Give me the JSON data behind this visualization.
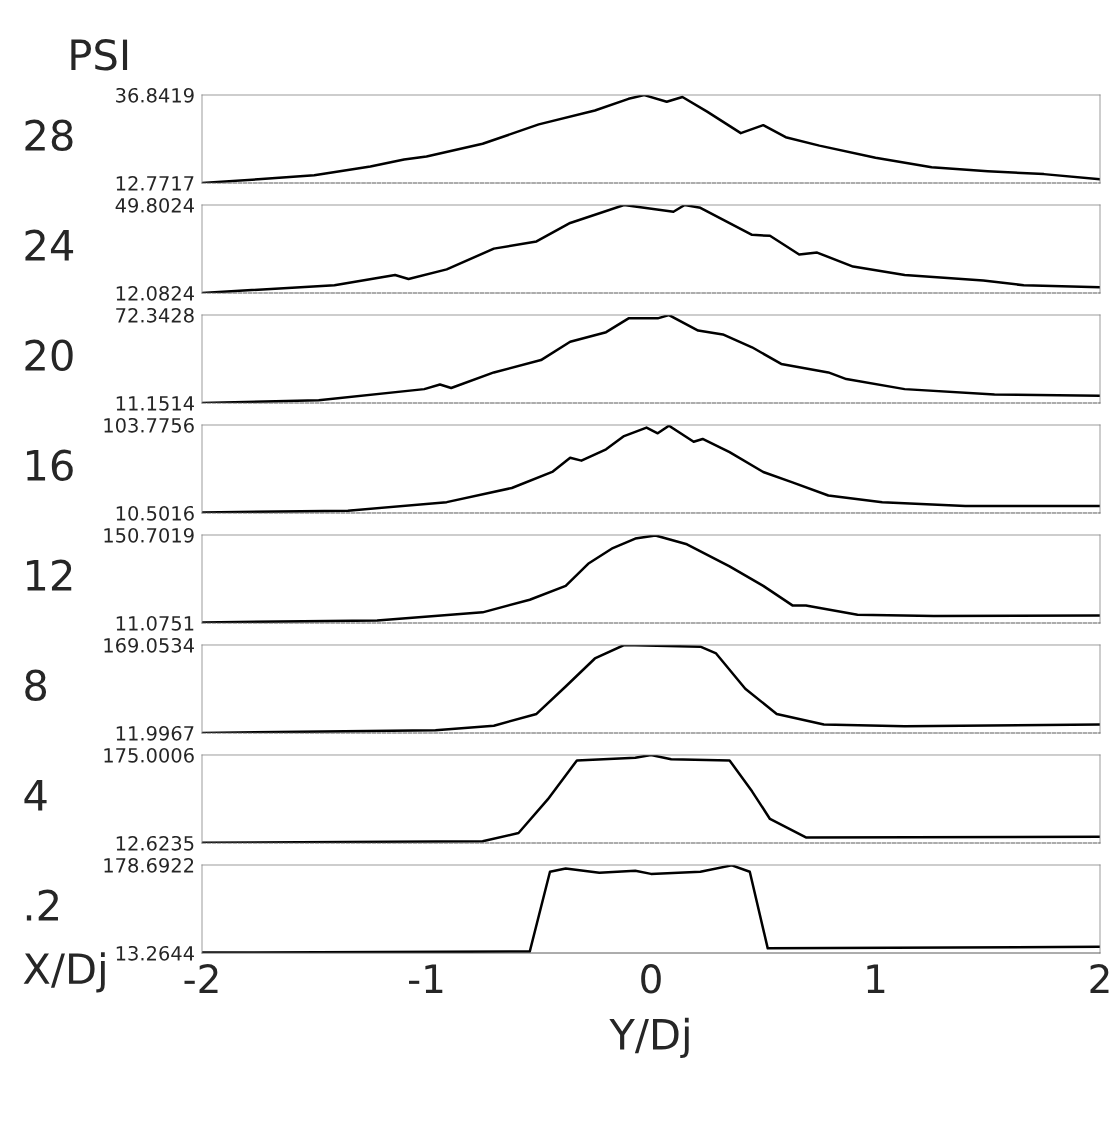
{
  "chart_data": [
    {
      "type": "line",
      "title": "PSI",
      "ylabel": "28",
      "color": "#000000",
      "xlim": [
        -2,
        2
      ],
      "ylim": [
        12.7717,
        36.8419
      ],
      "yticks": [
        12.7717,
        36.8419
      ],
      "tick_labels": "y",
      "x": [
        -2,
        -1.75,
        -1.5,
        -1.25,
        -1.1,
        -1.0,
        -0.75,
        -0.5,
        -0.25,
        -0.1,
        -0.03,
        0.07,
        0.14,
        0.25,
        0.4,
        0.5,
        0.6,
        0.75,
        1.0,
        1.25,
        1.5,
        1.75,
        2
      ],
      "values": [
        12.8,
        13.8,
        14.9,
        17.3,
        19.2,
        20.0,
        23.5,
        28.8,
        32.6,
        35.8,
        36.8,
        35.0,
        36.3,
        32.3,
        26.4,
        28.6,
        25.3,
        23.0,
        19.7,
        17.1,
        16.0,
        15.2,
        13.8
      ]
    },
    {
      "type": "line",
      "ylabel": "24",
      "color": "#000000",
      "xlim": [
        -2,
        2
      ],
      "ylim": [
        12.0824,
        49.8024
      ],
      "yticks": [
        12.0824,
        49.8024
      ],
      "tick_labels": "y",
      "x": [
        -2,
        -1.41,
        -1.14,
        -1.08,
        -0.91,
        -0.7,
        -0.51,
        -0.36,
        -0.12,
        0.1,
        0.15,
        0.22,
        0.45,
        0.53,
        0.66,
        0.74,
        0.9,
        1.13,
        1.48,
        1.66,
        2
      ],
      "values": [
        12.1,
        15.4,
        19.8,
        18.1,
        22.2,
        31.1,
        34.2,
        42.1,
        49.8,
        46.9,
        49.8,
        48.6,
        37.0,
        36.6,
        28.6,
        29.4,
        23.4,
        19.8,
        17.4,
        15.4,
        14.5
      ]
    },
    {
      "type": "line",
      "ylabel": "20",
      "color": "#000000",
      "xlim": [
        -2,
        2
      ],
      "ylim": [
        11.1514,
        72.3428
      ],
      "yticks": [
        11.1514,
        72.3428
      ],
      "tick_labels": "y",
      "x": [
        -2,
        -1.48,
        -1.01,
        -0.94,
        -0.89,
        -0.7,
        -0.49,
        -0.36,
        -0.2,
        -0.1,
        0.03,
        0.08,
        0.21,
        0.32,
        0.45,
        0.58,
        0.79,
        0.87,
        1.13,
        1.53,
        2
      ],
      "values": [
        11.2,
        13.1,
        20.8,
        24.0,
        21.6,
        32.4,
        41.0,
        53.7,
        60.4,
        70.0,
        70.0,
        72.3,
        61.5,
        58.8,
        49.9,
        38.3,
        32.4,
        27.8,
        20.8,
        17.0,
        16.2
      ]
    },
    {
      "type": "line",
      "ylabel": "16",
      "color": "#000000",
      "xlim": [
        -2,
        2
      ],
      "ylim": [
        10.5016,
        103.7756
      ],
      "yticks": [
        10.5016,
        103.7756
      ],
      "tick_labels": "y",
      "x": [
        -2,
        -1.35,
        -0.91,
        -0.62,
        -0.44,
        -0.36,
        -0.31,
        -0.2,
        -0.12,
        -0.02,
        0.03,
        0.08,
        0.19,
        0.23,
        0.35,
        0.5,
        0.63,
        0.79,
        1.03,
        1.4,
        2
      ],
      "values": [
        11,
        13,
        22,
        37,
        54,
        69,
        66,
        78,
        92,
        101,
        95,
        103,
        86,
        89,
        75,
        54,
        43,
        29,
        22,
        18,
        18
      ]
    },
    {
      "type": "line",
      "ylabel": "12",
      "color": "#000000",
      "xlim": [
        -2,
        2
      ],
      "ylim": [
        11.0751,
        150.7019
      ],
      "yticks": [
        11.0751,
        150.7019
      ],
      "tick_labels": "y",
      "x": [
        -2,
        -1.22,
        -0.75,
        -0.54,
        -0.38,
        -0.28,
        -0.17,
        -0.07,
        0.02,
        0.16,
        0.35,
        0.5,
        0.63,
        0.69,
        0.92,
        1.26,
        2
      ],
      "values": [
        12,
        15,
        28,
        48,
        70,
        105,
        130,
        145,
        150,
        136,
        101,
        70,
        39,
        39,
        24,
        22,
        23
      ]
    },
    {
      "type": "line",
      "ylabel": "8",
      "color": "#000000",
      "xlim": [
        -2,
        2
      ],
      "ylim": [
        11.9967,
        169.0534
      ],
      "yticks": [
        11.9967,
        169.0534
      ],
      "tick_labels": "y",
      "x": [
        -2,
        -0.96,
        -0.7,
        -0.51,
        -0.38,
        -0.25,
        -0.12,
        0.22,
        0.29,
        0.42,
        0.56,
        0.77,
        1.13,
        2
      ],
      "values": [
        12,
        17,
        25,
        46,
        95,
        145,
        169,
        166,
        154,
        91,
        46,
        27,
        24,
        27
      ]
    },
    {
      "type": "line",
      "ylabel": "4",
      "color": "#000000",
      "xlim": [
        -2,
        2
      ],
      "ylim": [
        12.6235,
        175.0006
      ],
      "yticks": [
        12.6235,
        175.0006
      ],
      "tick_labels": "y",
      "x": [
        -2,
        -0.75,
        -0.59,
        -0.46,
        -0.33,
        -0.07,
        0.0,
        0.09,
        0.35,
        0.45,
        0.53,
        0.69,
        2
      ],
      "values": [
        13,
        16,
        31,
        93,
        165,
        170,
        175,
        167,
        165,
        108,
        57,
        23,
        24
      ]
    },
    {
      "type": "line",
      "ylabel": ".2",
      "xlabel": "Y/Dj",
      "annotations": [
        "X/Dj"
      ],
      "color": "#000000",
      "xlim": [
        -2,
        2
      ],
      "ylim": [
        13.2644,
        178.6922
      ],
      "yticks": [
        13.2644,
        178.6922
      ],
      "xticks": [
        -2,
        -1,
        0,
        1,
        2
      ],
      "x": [
        -2,
        -0.54,
        -0.45,
        -0.38,
        -0.23,
        -0.07,
        0.0,
        0.22,
        0.36,
        0.44,
        0.52,
        2
      ],
      "values": [
        14,
        16,
        166,
        172,
        164,
        168,
        162,
        166,
        178,
        166,
        22,
        25
      ]
    }
  ]
}
